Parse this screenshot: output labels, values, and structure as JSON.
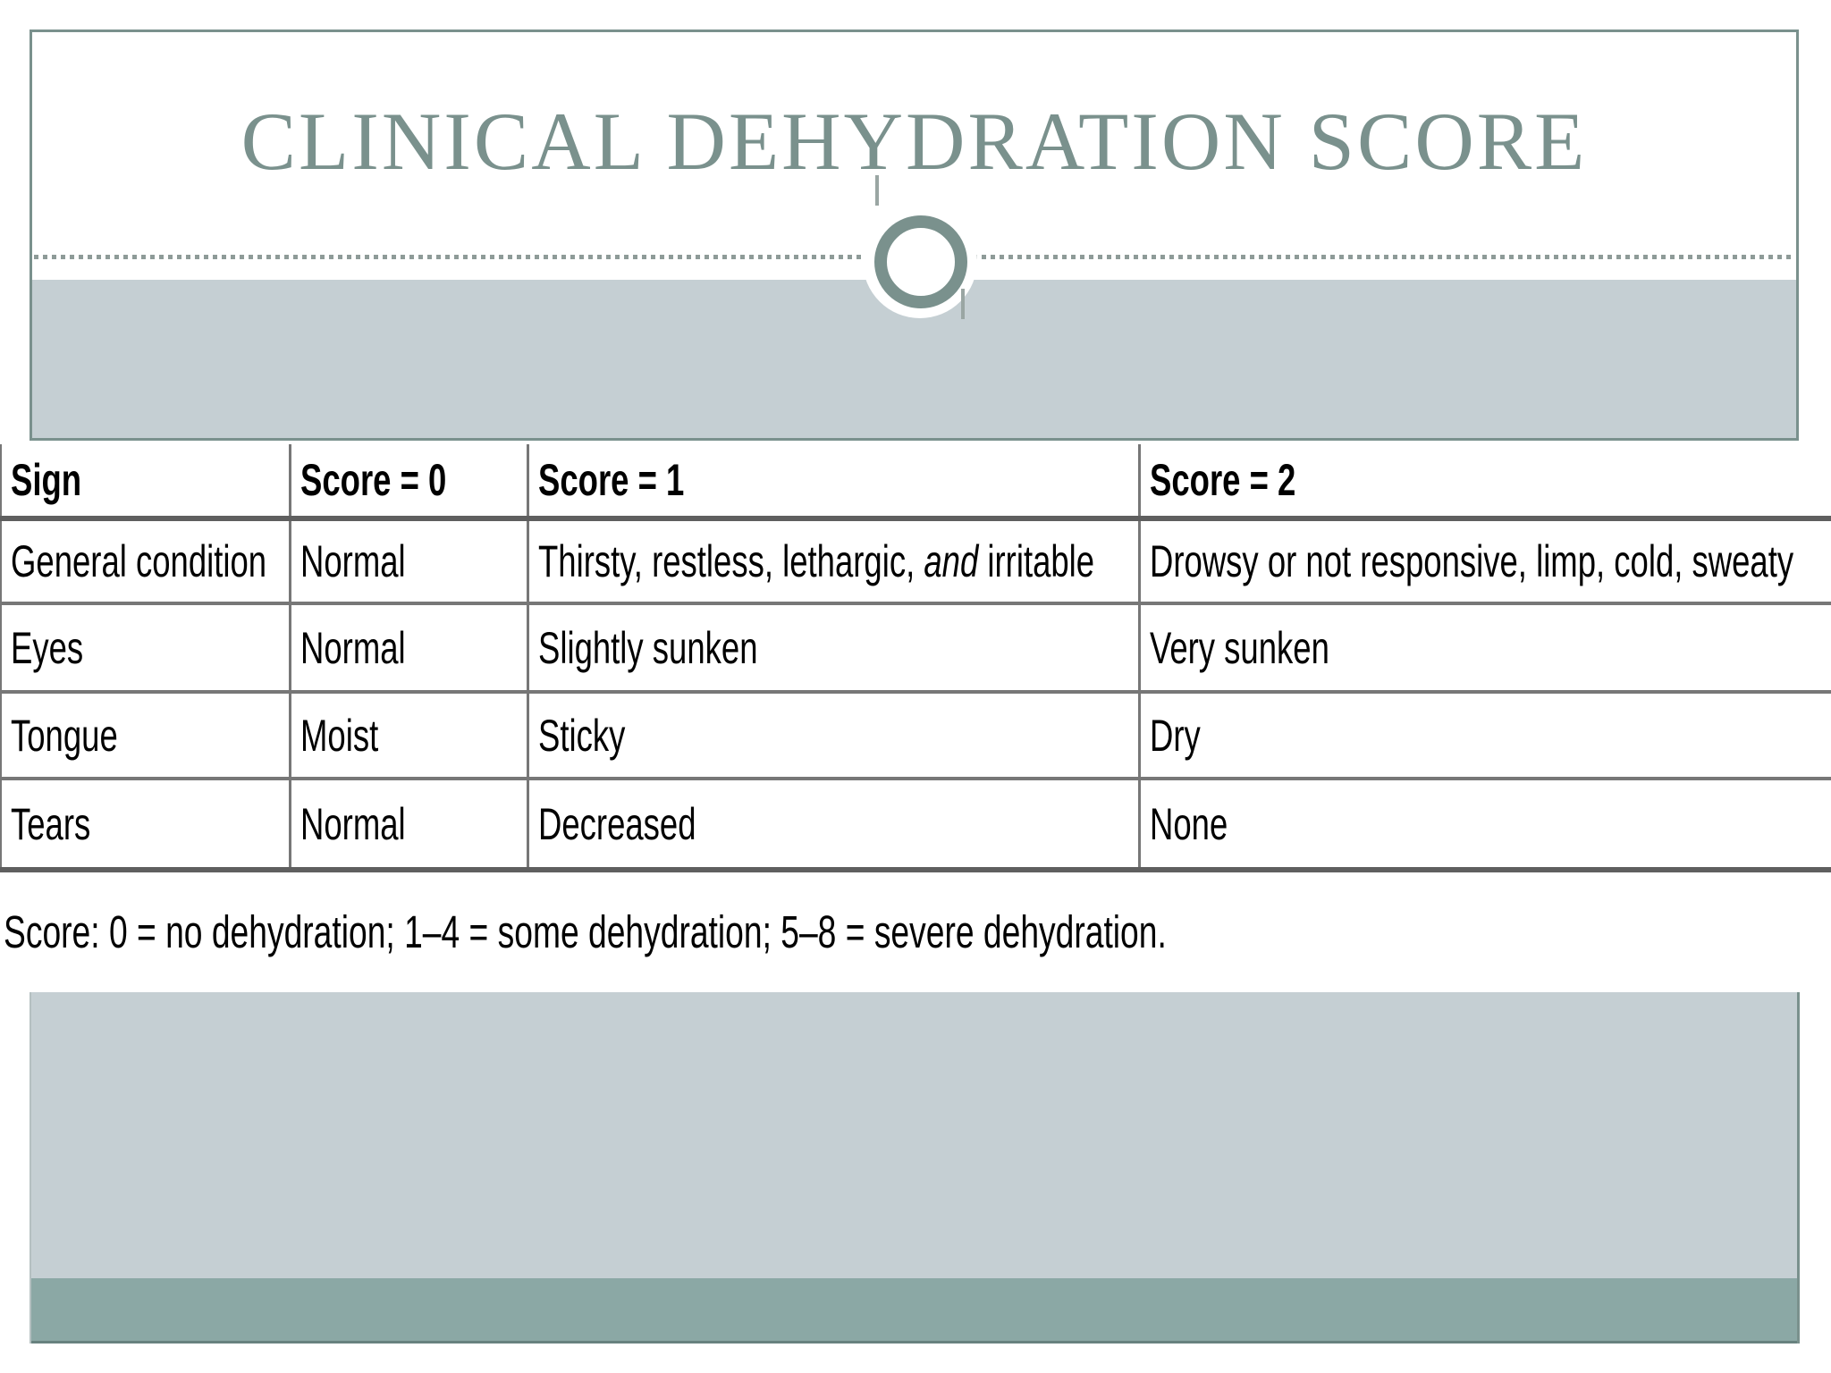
{
  "page": {
    "title": "CLINICAL DEHYDRATION SCORE"
  },
  "table": {
    "headers": [
      "Sign",
      "Score = 0",
      "Score = 1",
      "Score = 2"
    ],
    "rows": [
      {
        "cells": [
          "General condition",
          "Normal",
          {
            "parts": [
              {
                "t": "Thirsty, restless, lethargic, "
              },
              {
                "t": "and",
                "i": true
              },
              {
                "t": " irritable"
              }
            ]
          },
          "Drowsy or not responsive, limp, cold, sweaty"
        ]
      },
      {
        "cells": [
          "Eyes",
          "Normal",
          "Slightly sunken",
          "Very sunken"
        ]
      },
      {
        "cells": [
          "Tongue",
          "Moist",
          "Sticky",
          "Dry"
        ]
      },
      {
        "cells": [
          "Tears",
          "Normal",
          "Decreased",
          "None"
        ]
      }
    ]
  },
  "footnote": "Score: 0 = no dehydration; 1–4 = some dehydration; 5–8 = severe dehydration.",
  "colors": {
    "accent": "#7a918d",
    "band_light": "#c5cfd3",
    "band_dark": "#8ba8a5",
    "border_gray": "#777777",
    "border_gray_dark": "#5f5f5f",
    "dot": "#8e9b98",
    "tick": "#9aa6a3"
  }
}
